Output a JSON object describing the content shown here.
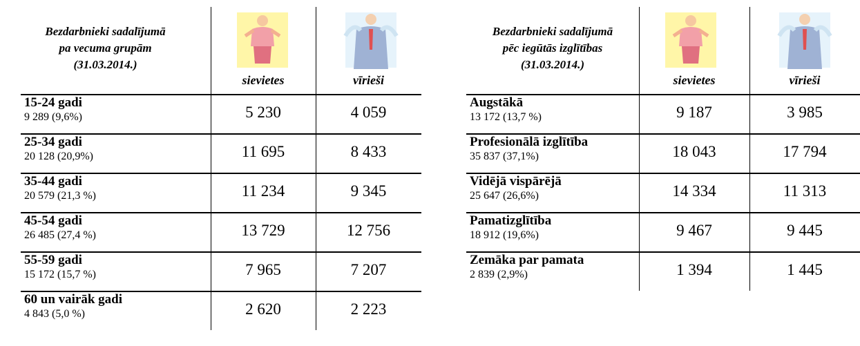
{
  "tables": [
    {
      "title_lines": [
        "Bezdarbnieki sadalījumā",
        "pa vecuma grupām",
        "(31.03.2014.)"
      ],
      "columns": [
        "sievietes",
        "vīrieši"
      ],
      "rows": [
        {
          "label": "15-24 gadi",
          "sub": "9 289 (9,6%)",
          "values": [
            "5 230",
            "4 059"
          ]
        },
        {
          "label": "25-34 gadi",
          "sub": "20 128 (20,9%)",
          "values": [
            "11 695",
            "8 433"
          ]
        },
        {
          "label": "35-44 gadi",
          "sub": "20 579 (21,3 %)",
          "values": [
            "11 234",
            "9 345"
          ]
        },
        {
          "label": "45-54 gadi",
          "sub": "26 485 (27,4 %)",
          "values": [
            "13 729",
            "12 756"
          ]
        },
        {
          "label": "55-59 gadi",
          "sub": "15 172 (15,7 %)",
          "values": [
            "7 965",
            "7 207"
          ]
        },
        {
          "label": "60 un vairāk gadi",
          "sub": "4 843 (5,0 %)",
          "values": [
            "2 620",
            "2 223"
          ]
        }
      ]
    },
    {
      "title_lines": [
        "Bezdarbnieki sadalījumā",
        "pēc iegūtās izglītības",
        "(31.03.2014.)"
      ],
      "columns": [
        "sievietes",
        "vīrieši"
      ],
      "rows": [
        {
          "label": "Augstākā",
          "sub": "13 172 (13,7 %)",
          "values": [
            "9 187",
            "3 985"
          ]
        },
        {
          "label": "Profesionālā izglītība",
          "sub": "35 837 (37,1%)",
          "values": [
            "18 043",
            "17 794"
          ]
        },
        {
          "label": "Vidējā vispārējā",
          "sub": "25 647 (26,6%)",
          "values": [
            "14 334",
            "11 313"
          ]
        },
        {
          "label": "Pamatizglītība",
          "sub": "18 912 (19,6%)",
          "values": [
            "9 467",
            "9 445"
          ]
        },
        {
          "label": "Zemāka par pamata",
          "sub": "2 839 (2,9%)",
          "values": [
            "1 394",
            "1 445"
          ]
        }
      ]
    }
  ]
}
